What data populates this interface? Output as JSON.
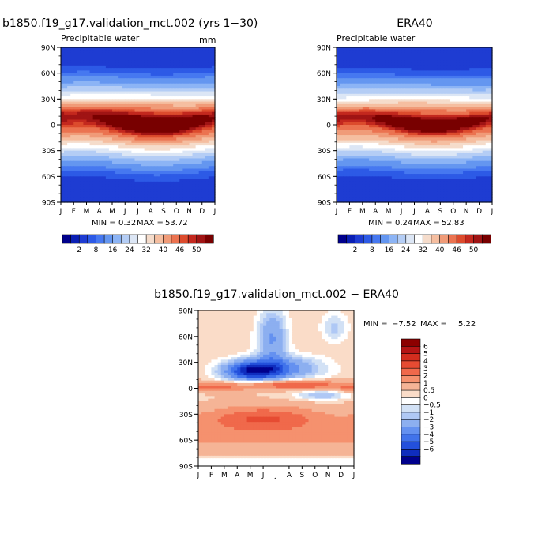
{
  "page": {
    "title": "b1850.f19_g17.validation_mct.002 (yrs 1-30)"
  },
  "chart_data": [
    {
      "type": "heatmap",
      "title": "b1850.f19_g17.validation_mct.002 (yrs 1−30)",
      "subtitle": "Precipitable water",
      "units": "mm",
      "x_ticks": [
        "J",
        "F",
        "M",
        "A",
        "M",
        "J",
        "J",
        "A",
        "S",
        "O",
        "N",
        "D",
        "J"
      ],
      "y_ticks": [
        "90N",
        "60N",
        "30N",
        "0",
        "30S",
        "60S",
        "90S"
      ],
      "stats": {
        "min_label": "MIN =",
        "min": "0.32",
        "max_label": "MAX =",
        "max": "53.72"
      },
      "colorbar": {
        "labels": [
          "2",
          "8",
          "16",
          "24",
          "32",
          "40",
          "46",
          "50"
        ],
        "colors": [
          "#00008c",
          "#0a1fb4",
          "#1e3cd2",
          "#2d5ae6",
          "#4678f0",
          "#6496f0",
          "#8cb4f5",
          "#b4cdf5",
          "#dce6f5",
          "#ffffff",
          "#f5dccb",
          "#f5bea0",
          "#f09b78",
          "#eb7350",
          "#dc4b2d",
          "#c3281e",
          "#a01414",
          "#780000"
        ],
        "ticks_between": [
          1,
          3,
          5,
          7,
          9,
          11,
          13,
          15
        ]
      },
      "model": "pw_model"
    },
    {
      "type": "heatmap",
      "title": "ERA40",
      "subtitle": "Precipitable water",
      "x_ticks": [
        "J",
        "F",
        "M",
        "A",
        "M",
        "J",
        "J",
        "A",
        "S",
        "O",
        "N",
        "D",
        "J"
      ],
      "y_ticks": [
        "90N",
        "60N",
        "30N",
        "0",
        "30S",
        "60S",
        "90S"
      ],
      "stats": {
        "min_label": "MIN =",
        "min": "0.24",
        "max_label": "MAX =",
        "max": "52.83"
      },
      "colorbar": {
        "labels": [
          "2",
          "8",
          "16",
          "24",
          "32",
          "40",
          "46",
          "50"
        ],
        "colors": [
          "#00008c",
          "#0a1fb4",
          "#1e3cd2",
          "#2d5ae6",
          "#4678f0",
          "#6496f0",
          "#8cb4f5",
          "#b4cdf5",
          "#dce6f5",
          "#ffffff",
          "#f5dccb",
          "#f5bea0",
          "#f09b78",
          "#eb7350",
          "#dc4b2d",
          "#c3281e",
          "#a01414",
          "#780000"
        ],
        "ticks_between": [
          1,
          3,
          5,
          7,
          9,
          11,
          13,
          15
        ]
      },
      "model": "pw_obs"
    },
    {
      "type": "heatmap",
      "title": "b1850.f19_g17.validation_mct.002 − ERA40",
      "x_ticks": [
        "J",
        "F",
        "M",
        "A",
        "M",
        "J",
        "J",
        "A",
        "S",
        "O",
        "N",
        "D",
        "J"
      ],
      "y_ticks": [
        "90N",
        "60N",
        "30N",
        "0",
        "30S",
        "60S",
        "90S"
      ],
      "stats": {
        "min_label": "MIN =",
        "min": "−7.52",
        "max_label": "MAX =",
        "max": "5.22"
      },
      "colorbar": {
        "labels": [
          "6",
          "5",
          "4",
          "3",
          "2",
          "1",
          "0.5",
          "0",
          "−0.5",
          "−1",
          "−2",
          "−3",
          "−4",
          "−5",
          "−6"
        ],
        "colors": [
          "#8c0000",
          "#b41414",
          "#d22d1e",
          "#e64b32",
          "#f0694b",
          "#f5916e",
          "#f5b496",
          "#fadcc8",
          "#ffffff",
          "#d2e1f5",
          "#afc8f5",
          "#8caff0",
          "#6491f0",
          "#4173eb",
          "#2350dc",
          "#0f2dbe",
          "#00008c"
        ]
      },
      "model": "pw_diff"
    }
  ]
}
